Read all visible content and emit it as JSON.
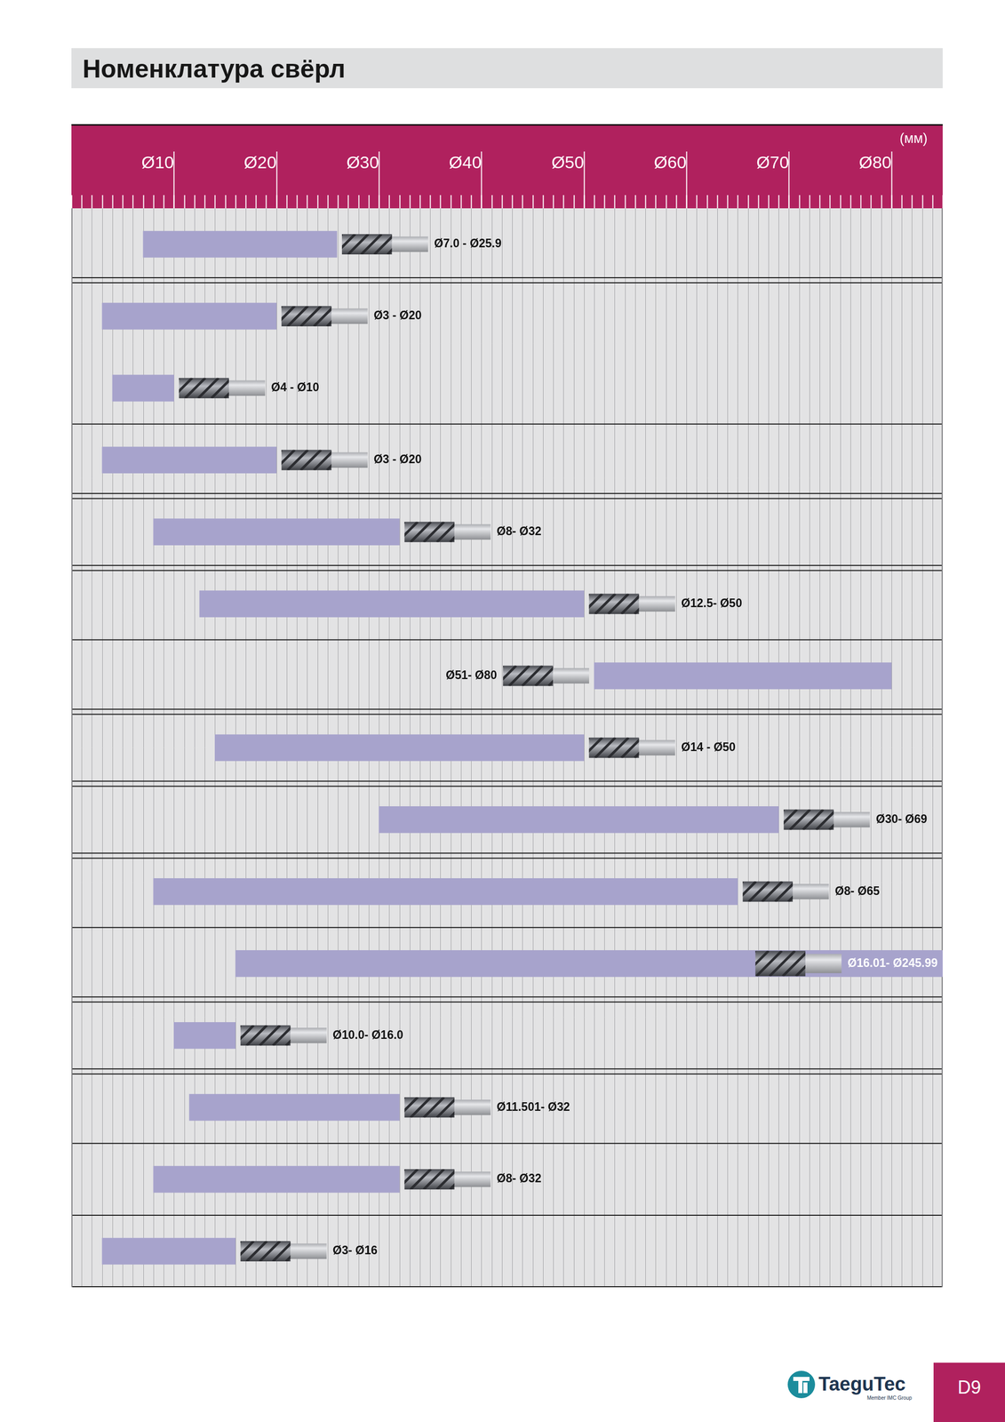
{
  "chart_data": {
    "type": "bar",
    "orientation": "horizontal",
    "title": "Номенклатура свёрл",
    "xlabel": "(мм)",
    "categories": [
      "Ø7.0 - Ø25.9",
      "Ø3 - Ø20",
      "Ø4 - Ø10",
      "Ø3 - Ø20",
      "Ø8- Ø32",
      "Ø12.5- Ø50",
      "Ø51- Ø80",
      "Ø14 - Ø50",
      "Ø30- Ø69",
      "Ø8- Ø65",
      "Ø16.01- Ø245.99",
      "Ø10.0- Ø16.0",
      "Ø11.501- Ø32",
      "Ø8- Ø32",
      "Ø3- Ø16"
    ],
    "values": [
      [
        7.0,
        25.9
      ],
      [
        3,
        20
      ],
      [
        4,
        10
      ],
      [
        3,
        20
      ],
      [
        8,
        32
      ],
      [
        12.5,
        50
      ],
      [
        51,
        80
      ],
      [
        14,
        50
      ],
      [
        30,
        69
      ],
      [
        8,
        65
      ],
      [
        16.01,
        245.99
      ],
      [
        10.0,
        16.0
      ],
      [
        11.501,
        32
      ],
      [
        8,
        32
      ],
      [
        3,
        16
      ]
    ],
    "color": "#a7a3cc",
    "xlim": [
      0,
      85
    ],
    "xticks": [
      {
        "value": 10,
        "label": "Ø10"
      },
      {
        "value": 20,
        "label": "Ø20"
      },
      {
        "value": 30,
        "label": "Ø30"
      },
      {
        "value": 40,
        "label": "Ø40"
      },
      {
        "value": 50,
        "label": "Ø50"
      },
      {
        "value": 60,
        "label": "Ø60"
      },
      {
        "value": 70,
        "label": "Ø70"
      },
      {
        "value": 80,
        "label": "Ø80"
      }
    ],
    "grid": true,
    "tick_labels": "x"
  },
  "footer": {
    "brand": "TaeguTec",
    "brand_note": "Member IMC Group",
    "page": "D9"
  }
}
